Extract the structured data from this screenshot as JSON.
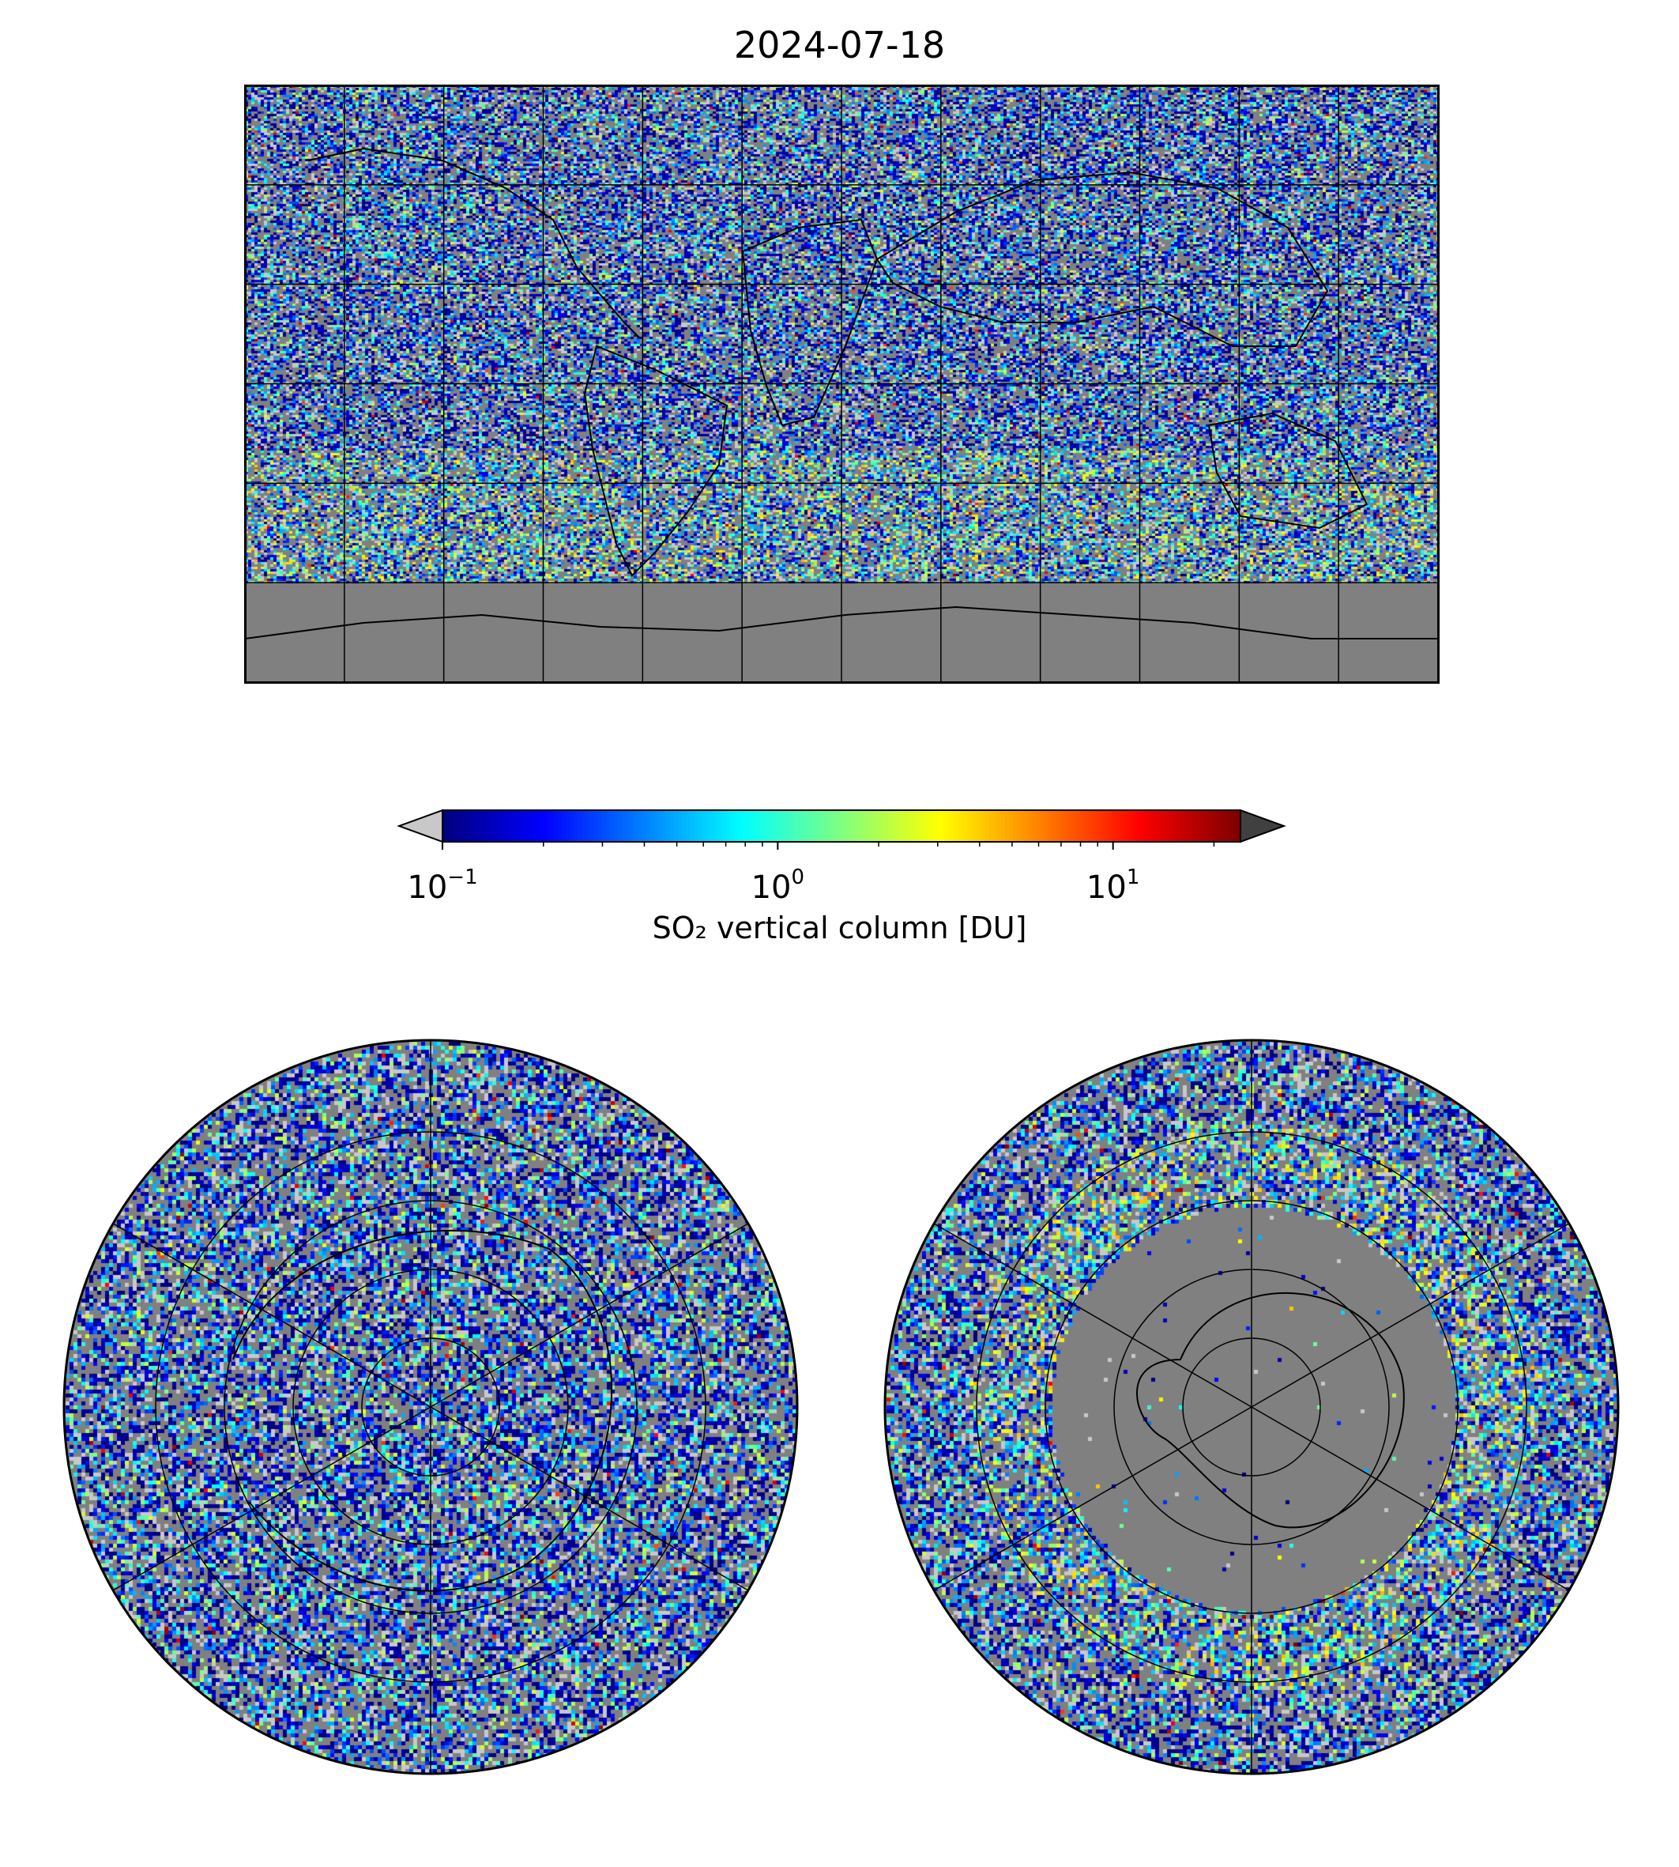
{
  "title": "2024-07-18",
  "colorbar": {
    "label": "SO₂ vertical column [DU]",
    "scale": "log",
    "range": [
      0.1,
      24
    ],
    "extend": "both",
    "under_color": "#c8c8c8",
    "over_color": "#404040",
    "colormap": "jet",
    "ticks": [
      {
        "value": 0.1,
        "base": "10",
        "exp": "−1"
      },
      {
        "value": 1,
        "base": "10",
        "exp": "0"
      },
      {
        "value": 10,
        "base": "10",
        "exp": "1"
      }
    ]
  },
  "maps": {
    "global": {
      "projection": "plate-carree",
      "lon_range": [
        -180,
        180
      ],
      "lat_range": [
        -90,
        90
      ],
      "gridlines": {
        "lon_step": 30,
        "lat_step": 30
      },
      "background": "#808080"
    },
    "north_polar": {
      "projection": "north-polar-stereographic",
      "circles_lat": [
        75,
        60,
        45,
        30
      ],
      "meridian_step": 60,
      "background": "#808080"
    },
    "south_polar": {
      "projection": "south-polar-stereographic",
      "circles_lat": [
        -75,
        -60,
        -45,
        -30
      ],
      "meridian_step": 60,
      "background": "#808080"
    }
  }
}
